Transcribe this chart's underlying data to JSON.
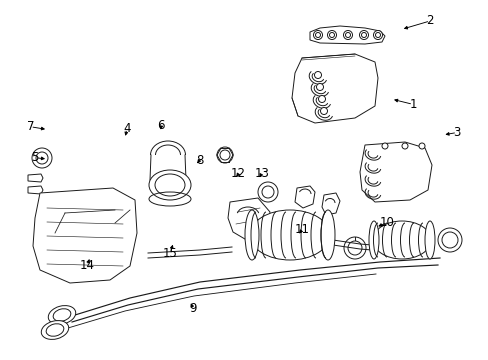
{
  "background_color": "#ffffff",
  "line_color": "#1a1a1a",
  "text_color": "#000000",
  "lw": 0.7,
  "font_size": 8.5,
  "callout_specs": {
    "1": [
      0.845,
      0.29,
      0.8,
      0.275
    ],
    "2": [
      0.88,
      0.058,
      0.82,
      0.082
    ],
    "3": [
      0.935,
      0.368,
      0.905,
      0.375
    ],
    "4": [
      0.26,
      0.358,
      0.255,
      0.385
    ],
    "5": [
      0.072,
      0.438,
      0.098,
      0.442
    ],
    "6": [
      0.33,
      0.348,
      0.328,
      0.368
    ],
    "7": [
      0.062,
      0.352,
      0.098,
      0.36
    ],
    "8": [
      0.408,
      0.445,
      0.4,
      0.46
    ],
    "9": [
      0.395,
      0.858,
      0.388,
      0.835
    ],
    "10": [
      0.792,
      0.618,
      0.768,
      0.632
    ],
    "11": [
      0.618,
      0.638,
      0.608,
      0.655
    ],
    "12": [
      0.488,
      0.482,
      0.48,
      0.498
    ],
    "13": [
      0.535,
      0.482,
      0.528,
      0.5
    ],
    "14": [
      0.178,
      0.738,
      0.185,
      0.712
    ],
    "15": [
      0.348,
      0.705,
      0.355,
      0.672
    ]
  }
}
